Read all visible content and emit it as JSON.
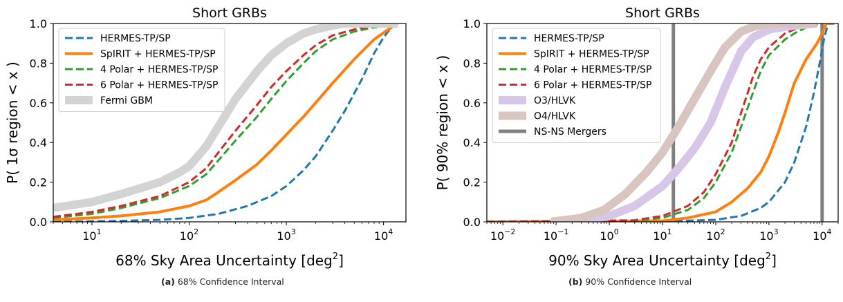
{
  "captions": [
    {
      "label": "(a)",
      "text": "68% Confidence Interval"
    },
    {
      "label": "(b)",
      "text": "90% Confidence Interval"
    }
  ],
  "chart_data": [
    {
      "type": "line",
      "title": "Short GRBs",
      "xlabel": "68% Sky Area Uncertainty [deg",
      "xlabel_sup": "2",
      "xlabel_end": "]",
      "ylabel": "P( 1σ region < x )",
      "xscale": "log",
      "xlim": [
        4,
        17000
      ],
      "ylim": [
        0,
        1.0
      ],
      "xticks": [
        {
          "value": 10,
          "base": "10",
          "exp": "1"
        },
        {
          "value": 100,
          "base": "10",
          "exp": "2"
        },
        {
          "value": 1000,
          "base": "10",
          "exp": "3"
        },
        {
          "value": 10000,
          "base": "10",
          "exp": "4"
        }
      ],
      "yticks": [
        "0.0",
        "0.2",
        "0.4",
        "0.6",
        "0.8",
        "1.0"
      ],
      "grid": false,
      "legend_position": "top-left",
      "series": [
        {
          "name": "HERMES-TP/SP",
          "color": "#1f77b4",
          "style": "dashed",
          "width": 3,
          "points": [
            [
              4,
              0.0
            ],
            [
              20,
              0.005
            ],
            [
              50,
              0.01
            ],
            [
              100,
              0.02
            ],
            [
              200,
              0.04
            ],
            [
              400,
              0.08
            ],
            [
              700,
              0.13
            ],
            [
              1000,
              0.18
            ],
            [
              1500,
              0.26
            ],
            [
              2000,
              0.33
            ],
            [
              3000,
              0.46
            ],
            [
              4000,
              0.56
            ],
            [
              6000,
              0.72
            ],
            [
              8000,
              0.85
            ],
            [
              10000,
              0.93
            ],
            [
              12000,
              0.98
            ],
            [
              14000,
              1.0
            ]
          ]
        },
        {
          "name": "SpIRIT  + HERMES-TP/SP",
          "color": "#ff7f0e",
          "style": "solid",
          "width": 4,
          "points": [
            [
              4,
              0.01
            ],
            [
              10,
              0.02
            ],
            [
              20,
              0.03
            ],
            [
              50,
              0.05
            ],
            [
              100,
              0.08
            ],
            [
              150,
              0.11
            ],
            [
              200,
              0.15
            ],
            [
              300,
              0.21
            ],
            [
              500,
              0.29
            ],
            [
              700,
              0.36
            ],
            [
              1000,
              0.44
            ],
            [
              1500,
              0.53
            ],
            [
              2000,
              0.6
            ],
            [
              3000,
              0.7
            ],
            [
              5000,
              0.82
            ],
            [
              8000,
              0.92
            ],
            [
              12000,
              0.98
            ],
            [
              14000,
              1.0
            ]
          ]
        },
        {
          "name": "4 Polar + HERMES-TP/SP",
          "color": "#2ca02c",
          "style": "dashed",
          "width": 3,
          "points": [
            [
              4,
              0.02
            ],
            [
              10,
              0.04
            ],
            [
              20,
              0.07
            ],
            [
              50,
              0.12
            ],
            [
              100,
              0.18
            ],
            [
              150,
              0.24
            ],
            [
              200,
              0.31
            ],
            [
              300,
              0.41
            ],
            [
              500,
              0.53
            ],
            [
              700,
              0.62
            ],
            [
              1000,
              0.71
            ],
            [
              1500,
              0.8
            ],
            [
              2000,
              0.86
            ],
            [
              3000,
              0.92
            ],
            [
              5000,
              0.96
            ],
            [
              8000,
              0.98
            ],
            [
              14000,
              1.0
            ]
          ]
        },
        {
          "name": "6 Polar + HERMES-TP/SP",
          "color": "#d62728",
          "style": "dashed",
          "width": 3,
          "points": [
            [
              4,
              0.025
            ],
            [
              10,
              0.05
            ],
            [
              20,
              0.08
            ],
            [
              50,
              0.13
            ],
            [
              100,
              0.2
            ],
            [
              150,
              0.27
            ],
            [
              200,
              0.35
            ],
            [
              300,
              0.46
            ],
            [
              500,
              0.59
            ],
            [
              700,
              0.68
            ],
            [
              1000,
              0.76
            ],
            [
              1500,
              0.84
            ],
            [
              2000,
              0.89
            ],
            [
              3000,
              0.94
            ],
            [
              5000,
              0.97
            ],
            [
              8000,
              0.99
            ],
            [
              14000,
              1.0
            ]
          ]
        },
        {
          "name": "Fermi GBM",
          "color": "#d3d3d3",
          "style": "solid",
          "width": 12,
          "points": [
            [
              4,
              0.07
            ],
            [
              10,
              0.1
            ],
            [
              20,
              0.14
            ],
            [
              50,
              0.2
            ],
            [
              80,
              0.25
            ],
            [
              100,
              0.28
            ],
            [
              150,
              0.38
            ],
            [
              200,
              0.48
            ],
            [
              300,
              0.62
            ],
            [
              500,
              0.76
            ],
            [
              700,
              0.84
            ],
            [
              1000,
              0.9
            ],
            [
              1500,
              0.95
            ],
            [
              2000,
              0.97
            ],
            [
              3000,
              0.99
            ],
            [
              4000,
              1.0
            ],
            [
              14000,
              1.0
            ]
          ]
        }
      ]
    },
    {
      "type": "line",
      "title": "Short GRBs",
      "xlabel": "90% Sky Area Uncertainty [deg",
      "xlabel_sup": "2",
      "xlabel_end": "]",
      "ylabel": "P( 90% region < x )",
      "xscale": "log",
      "xlim": [
        0.005,
        20000
      ],
      "ylim": [
        0,
        1.0
      ],
      "xticks": [
        {
          "value": 0.01,
          "base": "10",
          "exp": "−2"
        },
        {
          "value": 0.1,
          "base": "10",
          "exp": "−1"
        },
        {
          "value": 1,
          "base": "10",
          "exp": "0"
        },
        {
          "value": 10,
          "base": "10",
          "exp": "1"
        },
        {
          "value": 100,
          "base": "10",
          "exp": "2"
        },
        {
          "value": 1000,
          "base": "10",
          "exp": "3"
        },
        {
          "value": 10000,
          "base": "10",
          "exp": "4"
        }
      ],
      "yticks": [
        "0.0",
        "0.2",
        "0.4",
        "0.6",
        "0.8",
        "1.0"
      ],
      "grid": false,
      "legend_position": "top-left",
      "vlines": [
        {
          "name": "NS-NS Mergers",
          "color": "#808080",
          "x": [
            16,
            10000
          ]
        }
      ],
      "series": [
        {
          "name": "HERMES-TP/SP",
          "color": "#1f77b4",
          "style": "dashed",
          "width": 3,
          "points": [
            [
              0.005,
              0.0
            ],
            [
              10,
              0.002
            ],
            [
              100,
              0.01
            ],
            [
              300,
              0.03
            ],
            [
              700,
              0.07
            ],
            [
              1000,
              0.1
            ],
            [
              2000,
              0.2
            ],
            [
              3000,
              0.3
            ],
            [
              5000,
              0.48
            ],
            [
              7000,
              0.65
            ],
            [
              9000,
              0.8
            ],
            [
              11000,
              0.93
            ],
            [
              13000,
              1.0
            ]
          ]
        },
        {
          "name": "SpIRIT  + HERMES-TP/SP",
          "color": "#ff7f0e",
          "style": "solid",
          "width": 4,
          "points": [
            [
              0.005,
              0.0
            ],
            [
              10,
              0.005
            ],
            [
              30,
              0.02
            ],
            [
              100,
              0.05
            ],
            [
              200,
              0.1
            ],
            [
              400,
              0.17
            ],
            [
              700,
              0.25
            ],
            [
              1000,
              0.33
            ],
            [
              1500,
              0.45
            ],
            [
              2000,
              0.55
            ],
            [
              3000,
              0.7
            ],
            [
              5000,
              0.82
            ],
            [
              8000,
              0.9
            ],
            [
              10000,
              0.95
            ],
            [
              12000,
              1.0
            ],
            [
              17000,
              1.0
            ]
          ]
        },
        {
          "name": "4 Polar + HERMES-TP/SP",
          "color": "#2ca02c",
          "style": "dashed",
          "width": 3,
          "points": [
            [
              0.005,
              0.0
            ],
            [
              3,
              0.005
            ],
            [
              10,
              0.02
            ],
            [
              30,
              0.06
            ],
            [
              60,
              0.12
            ],
            [
              100,
              0.2
            ],
            [
              200,
              0.35
            ],
            [
              300,
              0.48
            ],
            [
              500,
              0.65
            ],
            [
              700,
              0.76
            ],
            [
              1000,
              0.84
            ],
            [
              2000,
              0.92
            ],
            [
              3000,
              0.95
            ],
            [
              5000,
              0.98
            ],
            [
              10000,
              1.0
            ]
          ]
        },
        {
          "name": "6 Polar + HERMES-TP/SP",
          "color": "#d62728",
          "style": "dashed",
          "width": 3,
          "points": [
            [
              0.005,
              0.0
            ],
            [
              3,
              0.008
            ],
            [
              10,
              0.03
            ],
            [
              30,
              0.08
            ],
            [
              60,
              0.15
            ],
            [
              100,
              0.24
            ],
            [
              200,
              0.4
            ],
            [
              300,
              0.55
            ],
            [
              500,
              0.73
            ],
            [
              700,
              0.82
            ],
            [
              1000,
              0.88
            ],
            [
              2000,
              0.95
            ],
            [
              3000,
              0.97
            ],
            [
              5000,
              0.99
            ],
            [
              10000,
              1.0
            ]
          ]
        },
        {
          "name": "O3/HLVK",
          "color": "#d7c6e8",
          "style": "solid",
          "width": 12,
          "points": [
            [
              0.08,
              0.0
            ],
            [
              0.3,
              0.005
            ],
            [
              1,
              0.03
            ],
            [
              3,
              0.08
            ],
            [
              10,
              0.18
            ],
            [
              20,
              0.27
            ],
            [
              40,
              0.37
            ],
            [
              80,
              0.5
            ],
            [
              150,
              0.68
            ],
            [
              300,
              0.86
            ],
            [
              500,
              0.93
            ],
            [
              1000,
              0.97
            ],
            [
              3000,
              0.99
            ],
            [
              8000,
              1.0
            ]
          ]
        },
        {
          "name": "O4/HLVK",
          "color": "#d8c5c0",
          "style": "solid",
          "width": 12,
          "points": [
            [
              0.08,
              0.0
            ],
            [
              0.3,
              0.02
            ],
            [
              0.8,
              0.06
            ],
            [
              2,
              0.14
            ],
            [
              5,
              0.25
            ],
            [
              10,
              0.35
            ],
            [
              20,
              0.48
            ],
            [
              40,
              0.62
            ],
            [
              80,
              0.76
            ],
            [
              150,
              0.88
            ],
            [
              300,
              0.96
            ],
            [
              600,
              0.99
            ],
            [
              1500,
              1.0
            ],
            [
              8000,
              1.0
            ]
          ]
        }
      ]
    }
  ]
}
